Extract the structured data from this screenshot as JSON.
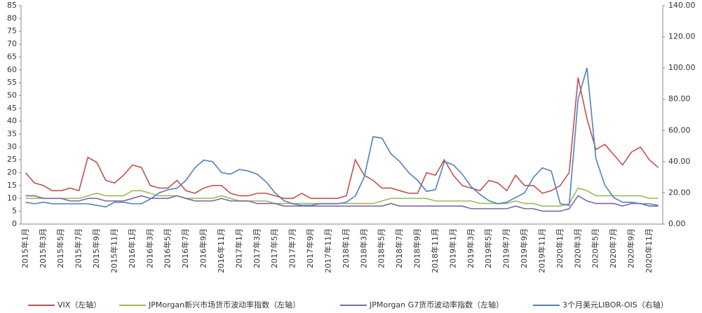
{
  "chart_data": {
    "type": "line",
    "categories": [
      "2015年1月",
      null,
      "2015年3月",
      null,
      "2015年5月",
      null,
      "2015年7月",
      null,
      "2015年9月",
      null,
      "2015年11月",
      null,
      "2016年1月",
      null,
      "2016年3月",
      null,
      "2016年5月",
      null,
      "2016年7月",
      null,
      "2016年9月",
      null,
      "2016年11月",
      null,
      "2017年1月",
      null,
      "2017年3月",
      null,
      "2017年5月",
      null,
      "2017年7月",
      null,
      "2017年9月",
      null,
      "2017年11月",
      null,
      "2018年1月",
      null,
      "2018年3月",
      null,
      "2018年5月",
      null,
      "2018年7月",
      null,
      "2018年9月",
      null,
      "2018年11月",
      null,
      "2019年1月",
      null,
      "2019年3月",
      null,
      "2019年5月",
      null,
      "2019年7月",
      null,
      "2019年9月",
      null,
      "2019年11月",
      null,
      "2020年1月",
      null,
      "2020年3月",
      null,
      "2020年5月",
      null,
      "2020年7月",
      null,
      "2020年9月",
      null,
      "2020年11月",
      null
    ],
    "series": [
      {
        "name": "VIX（左轴）",
        "color": "#c0504d",
        "axis": "y",
        "values": [
          20,
          16,
          15,
          13,
          13,
          14,
          13,
          26,
          24,
          17,
          16,
          19,
          23,
          22,
          15,
          14,
          14,
          17,
          13,
          12,
          14,
          15,
          15,
          12,
          11,
          11,
          12,
          12,
          11,
          10,
          10,
          12,
          10,
          10,
          10,
          10,
          11,
          25,
          19,
          17,
          14,
          14,
          13,
          12,
          12,
          20,
          19,
          25,
          19,
          15,
          14,
          13,
          17,
          16,
          13,
          19,
          15,
          15,
          12,
          13,
          15,
          20,
          57,
          41,
          29,
          31,
          27,
          23,
          28,
          30,
          25,
          22
        ]
      },
      {
        "name": "JPMorgan新兴市场货币波动率指数（左轴）",
        "color": "#9bbb59",
        "axis": "y",
        "values": [
          10,
          10,
          10,
          10,
          10,
          10,
          10,
          11,
          12,
          11,
          11,
          11,
          13,
          13,
          12,
          11,
          11,
          11,
          10,
          10,
          10,
          10,
          11,
          10,
          9,
          9,
          9,
          9,
          8,
          8,
          8,
          8,
          8,
          8,
          8,
          8,
          8,
          8,
          8,
          8,
          9,
          10,
          10,
          10,
          10,
          10,
          9,
          9,
          9,
          9,
          9,
          8,
          8,
          8,
          8,
          9,
          8,
          8,
          7,
          7,
          7,
          8,
          14,
          13,
          11,
          11,
          11,
          11,
          11,
          11,
          10,
          10
        ]
      },
      {
        "name": "JPMorgan G7货币波动率指数（左轴）",
        "color": "#8064a2",
        "axis": "y",
        "values": [
          11,
          11,
          10,
          10,
          10,
          9,
          9,
          10,
          10,
          9,
          9,
          9,
          10,
          11,
          10,
          10,
          10,
          11,
          10,
          9,
          9,
          9,
          10,
          9,
          9,
          9,
          8,
          8,
          8,
          7,
          7,
          7,
          7,
          7,
          7,
          7,
          7,
          7,
          7,
          7,
          7,
          8,
          7,
          7,
          7,
          7,
          7,
          7,
          7,
          7,
          6,
          6,
          6,
          6,
          6,
          7,
          6,
          6,
          5,
          5,
          5,
          6,
          11,
          9,
          8,
          8,
          8,
          7,
          8,
          8,
          7,
          7
        ]
      },
      {
        "name": "3个月美元LIBOR-OIS（右轴）",
        "color": "#4f81bd",
        "axis": "y2",
        "values": [
          14,
          13,
          14,
          13,
          13,
          13,
          13,
          13,
          12,
          11,
          14,
          14,
          13,
          13,
          16,
          20,
          22,
          23,
          28,
          36,
          41,
          40,
          33,
          32,
          35,
          34,
          32,
          27,
          20,
          15,
          13,
          12,
          12,
          13,
          13,
          13,
          14,
          18,
          30,
          56,
          55,
          45,
          40,
          33,
          28,
          21,
          22,
          40,
          38,
          32,
          24,
          19,
          15,
          13,
          14,
          17,
          20,
          30,
          36,
          34,
          13,
          12,
          80,
          100,
          42,
          25,
          17,
          14,
          14,
          13,
          13,
          12
        ]
      }
    ],
    "ylim": [
      0,
      85
    ],
    "yticks": [
      0,
      5,
      10,
      15,
      20,
      25,
      30,
      35,
      40,
      45,
      50,
      55,
      60,
      65,
      70,
      75,
      80,
      85
    ],
    "y2lim": [
      0,
      140
    ],
    "y2ticks": [
      {
        "value": 0,
        "label": "0.00"
      },
      {
        "value": 20,
        "label": "20.00"
      },
      {
        "value": 40,
        "label": "40.00"
      },
      {
        "value": 60,
        "label": "60.00"
      },
      {
        "value": 80,
        "label": "80.00"
      },
      {
        "value": 100,
        "label": "100.00"
      },
      {
        "value": 120,
        "label": "120.00"
      },
      {
        "value": 140,
        "label": "140.00"
      }
    ],
    "grid": false,
    "legend": "bottom"
  }
}
